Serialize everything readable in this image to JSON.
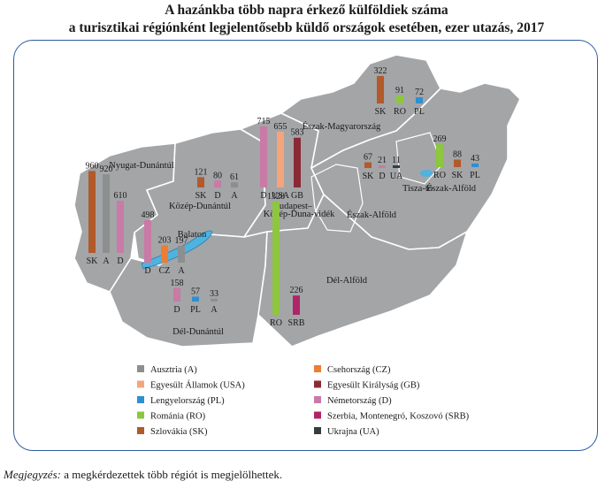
{
  "title_line1": "A hazánkba több napra érkező külföldiek száma",
  "title_line2": "a turisztikai régiónként legjelentősebb küldő országok esetében, ezer utazás, 2017",
  "note_label": "Megjegyzés:",
  "note_text": " a megkérdezettek több régiót is megjelölhettek.",
  "colors": {
    "map_fill": "#a3a5a7",
    "map_border": "#ffffff",
    "lake": "#4fb3e0",
    "frame": "#2b5b9c"
  },
  "legend": [
    {
      "code": "A",
      "label": "Ausztria (A)",
      "color": "#8c8f8f"
    },
    {
      "code": "CZ",
      "label": "Csehország (CZ)",
      "color": "#ed7d31"
    },
    {
      "code": "USA",
      "label": "Egyesült Államok (USA)",
      "color": "#f4a57c"
    },
    {
      "code": "GB",
      "label": "Egyesült Királyság (GB)",
      "color": "#8b2a35"
    },
    {
      "code": "PL",
      "label": "Lengyelország (PL)",
      "color": "#2f8fd1"
    },
    {
      "code": "D",
      "label": "Németország (D)",
      "color": "#c97aa6"
    },
    {
      "code": "RO",
      "label": "Románia (RO)",
      "color": "#8dc63f"
    },
    {
      "code": "SRB",
      "label": "Szerbia, Montenegró, Koszovó (SRB)",
      "color": "#b0246a"
    },
    {
      "code": "SK",
      "label": "Szlovákia (SK)",
      "color": "#b25a2a"
    },
    {
      "code": "UA",
      "label": "Ukrajna (UA)",
      "color": "#333d3d"
    }
  ],
  "chart_data": {
    "type": "bar",
    "units": "ezer utazás",
    "regions": [
      {
        "name": "Nyugat-Dunántúl",
        "bars": [
          {
            "country": "SK",
            "value": 960
          },
          {
            "country": "A",
            "value": 920
          },
          {
            "country": "D",
            "value": 610
          }
        ]
      },
      {
        "name": "Közép-Dunántúl",
        "bars": [
          {
            "country": "SK",
            "value": 121
          },
          {
            "country": "D",
            "value": 80
          },
          {
            "country": "A",
            "value": 61
          }
        ]
      },
      {
        "name": "Balaton",
        "bars": [
          {
            "country": "D",
            "value": 498
          },
          {
            "country": "CZ",
            "value": 203
          },
          {
            "country": "A",
            "value": 197
          }
        ]
      },
      {
        "name": "Dél-Dunántúl",
        "bars": [
          {
            "country": "D",
            "value": 158
          },
          {
            "country": "PL",
            "value": 57
          },
          {
            "country": "A",
            "value": 33
          }
        ]
      },
      {
        "name": "Budapest–Közép-Duna-vidék",
        "bars": [
          {
            "country": "D",
            "value": 715
          },
          {
            "country": "USA",
            "value": 655
          },
          {
            "country": "GB",
            "value": 583
          }
        ]
      },
      {
        "name": "Dél-Alföld",
        "bars": [
          {
            "country": "RO",
            "value": 1328
          },
          {
            "country": "SRB",
            "value": 226
          }
        ]
      },
      {
        "name": "Észak-Magyarország",
        "bars": [
          {
            "country": "SK",
            "value": 322
          },
          {
            "country": "RO",
            "value": 91
          },
          {
            "country": "PL",
            "value": 72
          }
        ]
      },
      {
        "name": "Tisza-tó",
        "bars": [
          {
            "country": "SK",
            "value": 67
          },
          {
            "country": "D",
            "value": 21
          },
          {
            "country": "UA",
            "value": 11
          }
        ]
      },
      {
        "name": "Észak-Alföld",
        "bars": [
          {
            "country": "RO",
            "value": 269
          },
          {
            "country": "SK",
            "value": 88
          },
          {
            "country": "PL",
            "value": 43
          }
        ]
      }
    ],
    "extra_labels": [
      "Észak-Alföld"
    ]
  }
}
